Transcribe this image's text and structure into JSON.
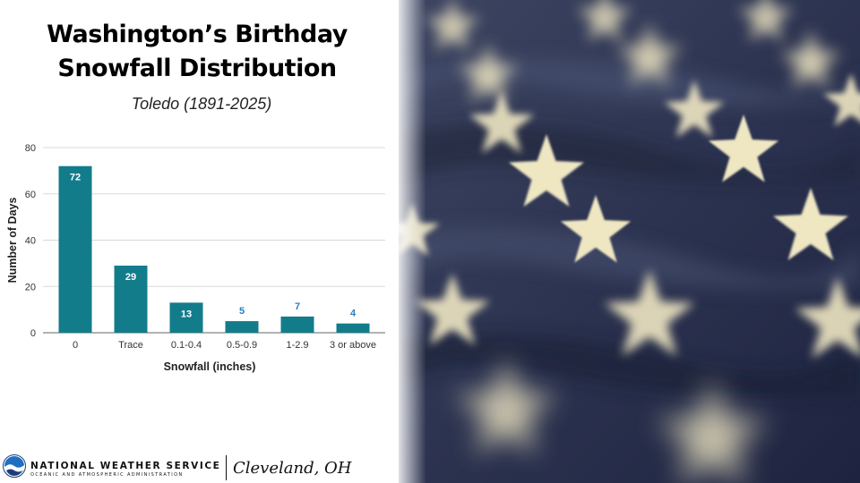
{
  "title_line1": "Washington’s Birthday",
  "title_line2": "Snowfall Distribution",
  "subtitle": "Toledo (1891-2025)",
  "footer": {
    "agency": "NATIONAL WEATHER SERVICE",
    "agency_sub": "OCEANIC AND ATMOSPHERIC ADMINISTRATION",
    "office": "Cleveland, OH"
  },
  "photo": {
    "subject": "us-flag-stars-icon"
  },
  "colors": {
    "bar": "#137c8b",
    "label_inside": "#ffffff",
    "label_outside": "#2a7fbf",
    "grid": "#d9d9d9"
  },
  "chart_data": {
    "type": "bar",
    "categories": [
      "0",
      "Trace",
      "0.1-0.4",
      "0.5-0.9",
      "1-2.9",
      "3 or above"
    ],
    "values": [
      72,
      29,
      13,
      5,
      7,
      4
    ],
    "xlabel": "Snowfall (inches)",
    "ylabel": "Number of Days",
    "ylim": [
      0,
      80
    ],
    "yticks": [
      0,
      20,
      40,
      60,
      80
    ],
    "grid": true
  }
}
